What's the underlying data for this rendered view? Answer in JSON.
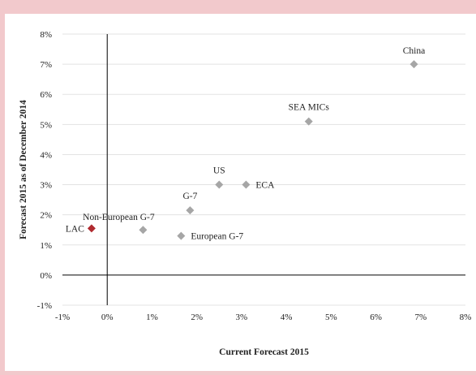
{
  "chart_data": {
    "type": "scatter",
    "xlabel": "Current Forecast 2015",
    "ylabel": "Forecast 2015 as of December 2014",
    "xlim": [
      -1,
      8
    ],
    "ylim": [
      -1,
      8
    ],
    "x_ticks": [
      "-1%",
      "0%",
      "1%",
      "2%",
      "3%",
      "4%",
      "5%",
      "6%",
      "7%",
      "8%"
    ],
    "y_ticks": [
      "-1%",
      "0%",
      "1%",
      "2%",
      "3%",
      "4%",
      "5%",
      "6%",
      "7%",
      "8%"
    ],
    "grid": "horizontal",
    "colors": {
      "default": "#a6a6a6",
      "highlight": "#b02a2f"
    },
    "points": [
      {
        "label": "China",
        "x": 6.85,
        "y": 7.0,
        "highlight": false
      },
      {
        "label": "SEA MICs",
        "x": 4.5,
        "y": 5.1,
        "highlight": false
      },
      {
        "label": "US",
        "x": 2.5,
        "y": 3.0,
        "highlight": false
      },
      {
        "label": "ECA",
        "x": 3.1,
        "y": 3.0,
        "highlight": false
      },
      {
        "label": "G-7",
        "x": 1.85,
        "y": 2.15,
        "highlight": false
      },
      {
        "label": "Non-European G-7",
        "x": 0.8,
        "y": 1.5,
        "highlight": false
      },
      {
        "label": "European G-7",
        "x": 1.65,
        "y": 1.3,
        "highlight": false
      },
      {
        "label": "LAC",
        "x": -0.35,
        "y": 1.55,
        "highlight": true
      }
    ]
  }
}
